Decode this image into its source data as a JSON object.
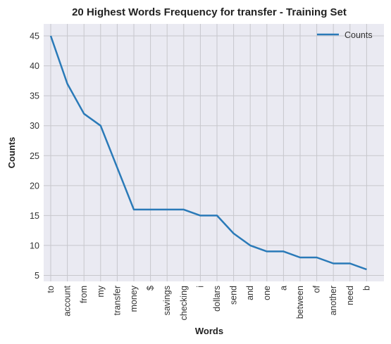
{
  "chart_data": {
    "type": "line",
    "title": "20 Highest Words Frequency for transfer - Training Set",
    "xlabel": "Words",
    "ylabel": "Counts",
    "categories": [
      "to",
      "account",
      "from",
      "my",
      "transfer",
      "money",
      "$",
      "savings",
      "checking",
      "i",
      "dollars",
      "send",
      "and",
      "one",
      "a",
      "between",
      "of",
      "another",
      "need",
      "b"
    ],
    "series": [
      {
        "name": "Counts",
        "values": [
          45,
          37,
          32,
          30,
          23,
          16,
          16,
          16,
          16,
          15,
          15,
          12,
          10,
          9,
          9,
          8,
          8,
          7,
          7,
          6
        ]
      }
    ],
    "yticks": [
      5,
      10,
      15,
      20,
      25,
      30,
      35,
      40,
      45
    ],
    "ylim": [
      4,
      47
    ],
    "grid": true,
    "legend": "top-right",
    "colors": {
      "line": "#2a7ab8",
      "plot_bg": "#eaeaf2"
    }
  }
}
